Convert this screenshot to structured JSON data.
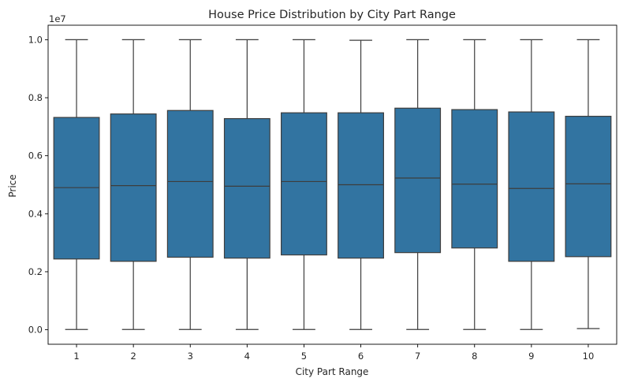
{
  "chart_data": {
    "type": "boxplot",
    "title": "House Price Distribution by City Part Range",
    "xlabel": "City Part Range",
    "ylabel": "Price",
    "y_offset_text": "1e7",
    "ylim": [
      -0.05,
      1.05
    ],
    "ytick_values": [
      0.0,
      0.2,
      0.4,
      0.6,
      0.8,
      1.0
    ],
    "ytick_labels": [
      "0.0",
      "0.2",
      "0.4",
      "0.6",
      "0.8",
      "1.0"
    ],
    "categories": [
      "1",
      "2",
      "3",
      "4",
      "5",
      "6",
      "7",
      "8",
      "9",
      "10"
    ],
    "box_color": "#3274a1",
    "line_color": "#3d3d3d",
    "grid": false,
    "boxes": [
      {
        "min": 0.001,
        "q1": 0.244,
        "median": 0.49,
        "q3": 0.732,
        "max": 1.0
      },
      {
        "min": 0.001,
        "q1": 0.236,
        "median": 0.497,
        "q3": 0.744,
        "max": 1.0
      },
      {
        "min": 0.001,
        "q1": 0.25,
        "median": 0.511,
        "q3": 0.756,
        "max": 1.0
      },
      {
        "min": 0.001,
        "q1": 0.247,
        "median": 0.495,
        "q3": 0.728,
        "max": 1.0
      },
      {
        "min": 0.001,
        "q1": 0.258,
        "median": 0.511,
        "q3": 0.748,
        "max": 1.0
      },
      {
        "min": 0.001,
        "q1": 0.247,
        "median": 0.5,
        "q3": 0.748,
        "max": 0.998
      },
      {
        "min": 0.001,
        "q1": 0.266,
        "median": 0.523,
        "q3": 0.764,
        "max": 1.0
      },
      {
        "min": 0.001,
        "q1": 0.282,
        "median": 0.502,
        "q3": 0.759,
        "max": 1.0
      },
      {
        "min": 0.001,
        "q1": 0.236,
        "median": 0.487,
        "q3": 0.751,
        "max": 1.0
      },
      {
        "min": 0.004,
        "q1": 0.252,
        "median": 0.503,
        "q3": 0.736,
        "max": 1.0
      }
    ]
  }
}
